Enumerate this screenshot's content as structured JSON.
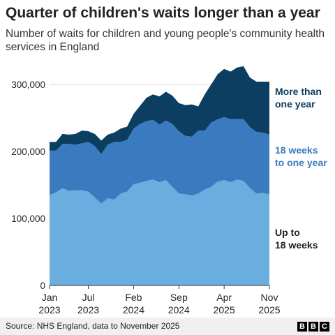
{
  "chart_data": {
    "type": "area",
    "title": "Quarter of children's waits longer than a year",
    "subtitle": "Number of waits for children and young people's community health services in England",
    "stacked": true,
    "ylim": [
      0,
      330000
    ],
    "y_ticks": [
      "0",
      "100,000",
      "200,000",
      "300,000"
    ],
    "y_tick_values": [
      0,
      100000,
      200000,
      300000
    ],
    "x_ticks": [
      {
        "line1": "Jan",
        "line2": "2023",
        "index": 0
      },
      {
        "line1": "Jul",
        "line2": "2023",
        "index": 6
      },
      {
        "line1": "Feb",
        "line2": "2024",
        "index": 13
      },
      {
        "line1": "Sep",
        "line2": "2024",
        "index": 20
      },
      {
        "line1": "Apr",
        "line2": "2025",
        "index": 27
      },
      {
        "line1": "Nov",
        "line2": "2025",
        "index": 34
      }
    ],
    "x": [
      "Jan 2023",
      "Feb 2023",
      "Mar 2023",
      "Apr 2023",
      "May 2023",
      "Jun 2023",
      "Jul 2023",
      "Aug 2023",
      "Sep 2023",
      "Oct 2023",
      "Nov 2023",
      "Dec 2023",
      "Jan 2024",
      "Feb 2024",
      "Mar 2024",
      "Apr 2024",
      "May 2024",
      "Jun 2024",
      "Jul 2024",
      "Aug 2024",
      "Sep 2024",
      "Oct 2024",
      "Nov 2024",
      "Dec 2024",
      "Jan 2025",
      "Feb 2025",
      "Mar 2025",
      "Apr 2025",
      "May 2025",
      "Jun 2025",
      "Jul 2025",
      "Aug 2025",
      "Sep 2025",
      "Oct 2025",
      "Nov 2025"
    ],
    "series": [
      {
        "name": "Up to 18 weeks",
        "color": "#6aaee0",
        "values": [
          135000,
          139000,
          145000,
          141000,
          142000,
          142000,
          140000,
          131000,
          122000,
          130000,
          128000,
          137000,
          140000,
          151000,
          153000,
          156000,
          158000,
          154000,
          157000,
          147000,
          137000,
          136000,
          134000,
          137000,
          143000,
          147000,
          155000,
          157000,
          154000,
          158000,
          156000,
          145000,
          137000,
          138000,
          136000
        ]
      },
      {
        "name": "18 weeks to one year",
        "color": "#3a7bbf",
        "values": [
          66000,
          62000,
          66000,
          70000,
          68000,
          70000,
          74000,
          77000,
          74000,
          80000,
          86000,
          77000,
          77000,
          83000,
          88000,
          89000,
          89000,
          86000,
          89000,
          94000,
          93000,
          87000,
          88000,
          94000,
          88000,
          96000,
          93000,
          94000,
          94000,
          90000,
          92000,
          91000,
          92000,
          90000,
          89000
        ]
      },
      {
        "name": "More than one year",
        "color": "#0c3e62",
        "values": [
          13000,
          13000,
          15000,
          14000,
          16000,
          19000,
          16000,
          18000,
          20000,
          15000,
          14000,
          20000,
          20000,
          22000,
          27000,
          35000,
          38000,
          42000,
          43000,
          42000,
          42000,
          46000,
          48000,
          36000,
          54000,
          57000,
          67000,
          72000,
          71000,
          77000,
          79000,
          74000,
          75000,
          76000,
          79000
        ]
      }
    ],
    "legend": [
      {
        "line1": "More than",
        "line2": "one year",
        "color": "#0c3e62"
      },
      {
        "line1": "18 weeks",
        "line2": "to one year",
        "color": "#3a7bbf"
      },
      {
        "line1": "Up to",
        "line2": "18 weeks",
        "color": "#222222"
      }
    ],
    "source": "Source: NHS England, data to November 2025"
  }
}
